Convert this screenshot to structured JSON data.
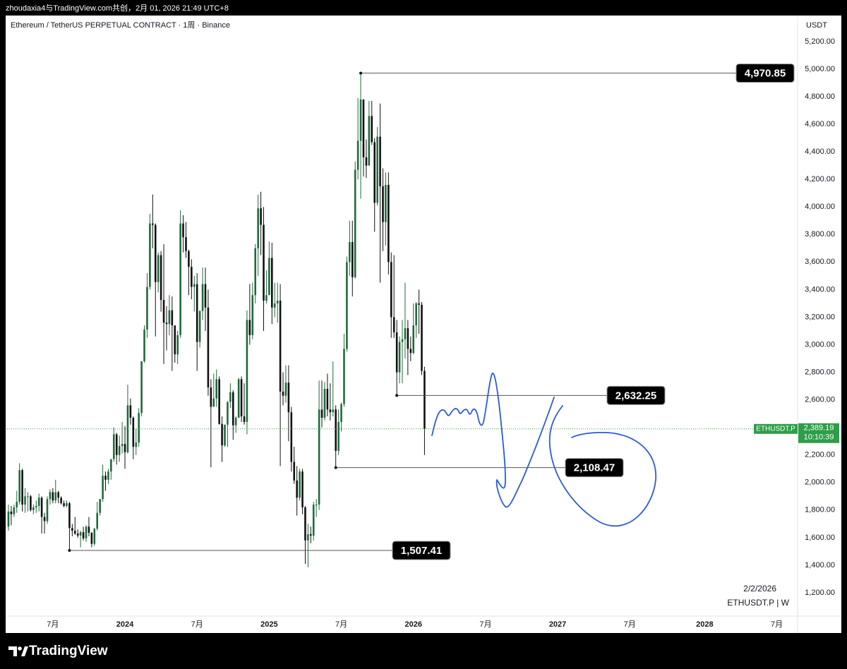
{
  "header": {
    "caption": "zhoudaxia4与TradingView.com共创，2月 01, 2026 21:49 UTC+8"
  },
  "chart_data": {
    "type": "candlestick",
    "title": "Ethereum / TetherUS PERPETUAL CONTRACT · 1周 · Binance",
    "currency": "USDT",
    "open": [
      1680,
      1790,
      1770,
      1820,
      1860,
      2090,
      1840,
      1900,
      1900,
      1800,
      1820,
      1830,
      1890,
      1750,
      1720,
      1880,
      1930,
      1870,
      1930,
      1890,
      1850,
      1830,
      1850,
      1670,
      1650,
      1630,
      1615,
      1640,
      1595,
      1680,
      1635,
      1555,
      1665,
      1780,
      1880,
      2050,
      2020,
      2080,
      2170,
      2350,
      2200,
      2265,
      2280,
      2220,
      2560,
      2470,
      2260,
      2290,
      2505,
      2880,
      3110,
      3420,
      3880,
      3870,
      3455,
      3650,
      3325,
      3160,
      3150,
      3250,
      3140,
      2930,
      3070,
      3880,
      3780,
      3680,
      3565,
      3420,
      3440,
      3020,
      3245,
      3440,
      3270,
      2690,
      2550,
      2610,
      2750,
      2425,
      2270,
      2420,
      2585,
      2655,
      2415,
      2470,
      2750,
      2480,
      2440,
      3180,
      3070,
      3360,
      3700,
      3990,
      3870,
      3320,
      3360,
      3630,
      3270,
      3300,
      3320,
      2660,
      2630,
      2725,
      2510,
      2150,
      2015,
      1890,
      2080,
      1820,
      1580,
      1625,
      1615,
      1840,
      1840,
      2530,
      2470,
      2680,
      2530,
      2510,
      2530,
      2230,
      2440,
      2570,
      2970,
      3600,
      3745,
      3490,
      4270,
      4480,
      4780,
      4360,
      4300,
      4660,
      4470,
      4030,
      4510,
      4150,
      3890,
      4160,
      3600,
      3200,
      3090,
      2800,
      3020,
      3040,
      3120,
      2970,
      2940,
      3140,
      3300,
      3290,
      2810
    ],
    "high": [
      1840,
      1830,
      1840,
      1940,
      2140,
      2100,
      1960,
      1930,
      1910,
      1840,
      1870,
      1920,
      1900,
      1780,
      1900,
      1950,
      1960,
      2020,
      1940,
      1900,
      1870,
      1870,
      1860,
      1700,
      1750,
      1660,
      1650,
      1680,
      1690,
      1750,
      1640,
      1670,
      1860,
      1880,
      2130,
      2080,
      2100,
      2170,
      2400,
      2360,
      2340,
      2440,
      2410,
      2710,
      2610,
      2480,
      2390,
      2540,
      2880,
      3140,
      3520,
      3950,
      4090,
      3880,
      3670,
      3680,
      3730,
      3280,
      3360,
      3350,
      3140,
      3100,
      3975,
      3940,
      3890,
      3690,
      3620,
      3500,
      3520,
      3250,
      3560,
      3560,
      3400,
      2750,
      2790,
      2820,
      2770,
      2480,
      2420,
      2590,
      2720,
      2670,
      2480,
      2760,
      2770,
      2720,
      3250,
      3440,
      3450,
      3730,
      4090,
      4110,
      4000,
      3540,
      3750,
      3740,
      3450,
      3450,
      3440,
      2800,
      2850,
      2850,
      2550,
      2260,
      2120,
      2100,
      2100,
      1830,
      1700,
      1680,
      1860,
      1880,
      2740,
      2740,
      2730,
      2790,
      2720,
      2880,
      2560,
      2530,
      2580,
      3080,
      3640,
      3900,
      3900,
      4330,
      4790,
      4970.85,
      4780,
      4490,
      4770,
      4770,
      4500,
      4580,
      4750,
      4280,
      4250,
      4250,
      3670,
      3650,
      3180,
      3060,
      3180,
      3450,
      3180,
      3060,
      3300,
      3310,
      3400,
      3310,
      2840
    ],
    "low": [
      1650,
      1690,
      1750,
      1780,
      1840,
      1790,
      1780,
      1790,
      1790,
      1770,
      1780,
      1790,
      1630,
      1630,
      1700,
      1840,
      1850,
      1850,
      1850,
      1840,
      1820,
      1820,
      1507.41,
      1610,
      1620,
      1600,
      1530,
      1580,
      1570,
      1610,
      1530,
      1540,
      1650,
      1760,
      1860,
      1940,
      1990,
      2020,
      2150,
      2130,
      2150,
      2210,
      2100,
      2210,
      2420,
      2170,
      2200,
      2260,
      2480,
      2870,
      3050,
      3400,
      3700,
      3060,
      3380,
      3240,
      2860,
      2960,
      3070,
      2810,
      2870,
      2860,
      3050,
      3670,
      3630,
      3360,
      3330,
      3240,
      2810,
      2980,
      3180,
      3100,
      2630,
      2110,
      2550,
      2550,
      2420,
      2150,
      2260,
      2260,
      2540,
      2310,
      2360,
      2470,
      2440,
      2420,
      2350,
      3000,
      3040,
      3300,
      3500,
      3650,
      3100,
      3300,
      3360,
      3150,
      3200,
      3160,
      2120,
      2560,
      2580,
      2300,
      2080,
      1990,
      1760,
      1870,
      1770,
      1410,
      1385,
      1560,
      1580,
      1750,
      1800,
      2400,
      2450,
      2480,
      2450,
      2480,
      2108.47,
      2200,
      2370,
      2550,
      2950,
      3500,
      3350,
      3480,
      4200,
      4060,
      4220,
      4210,
      4300,
      4450,
      3820,
      4010,
      3450,
      3680,
      3720,
      3510,
      3050,
      3050,
      2632.25,
      2720,
      2720,
      2900,
      2780,
      2880,
      2930,
      3050,
      3080,
      2780,
      2200
    ],
    "close": [
      1790,
      1770,
      1820,
      1860,
      2090,
      1840,
      1900,
      1900,
      1800,
      1820,
      1830,
      1890,
      1750,
      1720,
      1880,
      1930,
      1870,
      1930,
      1890,
      1850,
      1830,
      1850,
      1670,
      1650,
      1630,
      1615,
      1640,
      1595,
      1680,
      1635,
      1555,
      1665,
      1780,
      1880,
      2050,
      2020,
      2080,
      2170,
      2350,
      2200,
      2265,
      2280,
      2220,
      2560,
      2470,
      2260,
      2290,
      2505,
      2880,
      3110,
      3420,
      3880,
      3870,
      3455,
      3650,
      3325,
      3160,
      3150,
      3250,
      3140,
      2930,
      3070,
      3880,
      3780,
      3680,
      3565,
      3420,
      3440,
      3020,
      3245,
      3440,
      3270,
      2690,
      2550,
      2610,
      2750,
      2425,
      2270,
      2420,
      2585,
      2655,
      2415,
      2470,
      2750,
      2480,
      2440,
      3180,
      3070,
      3360,
      3700,
      3990,
      3870,
      3320,
      3360,
      3630,
      3270,
      3300,
      3320,
      2660,
      2630,
      2725,
      2510,
      2150,
      2015,
      1890,
      2080,
      1820,
      1580,
      1625,
      1615,
      1840,
      1840,
      2530,
      2470,
      2680,
      2530,
      2510,
      2530,
      2230,
      2440,
      2570,
      2970,
      3600,
      3745,
      3490,
      4270,
      4480,
      4780,
      4360,
      4300,
      4660,
      4470,
      4030,
      4510,
      4150,
      3890,
      4160,
      3600,
      3200,
      3090,
      2800,
      3020,
      3040,
      3120,
      2970,
      2940,
      3140,
      3300,
      3290,
      2810,
      2389.19
    ],
    "up_color": "#1e6b3a",
    "down_color": "#111111",
    "ylim": [
      1031,
      5389
    ],
    "yticks": [
      {
        "value": 1200,
        "label": "1,200.00"
      },
      {
        "value": 1400,
        "label": "1,400.00"
      },
      {
        "value": 1600,
        "label": "1,600.00"
      },
      {
        "value": 1800,
        "label": "1,800.00"
      },
      {
        "value": 2000,
        "label": "2,000.00"
      },
      {
        "value": 2200,
        "label": "2,200.00"
      },
      {
        "value": 2400,
        "label": "2,400.00"
      },
      {
        "value": 2600,
        "label": "2,600.00"
      },
      {
        "value": 2800,
        "label": "2,800.00"
      },
      {
        "value": 3000,
        "label": "3,000.00"
      },
      {
        "value": 3200,
        "label": "3,200.00"
      },
      {
        "value": 3400,
        "label": "3,400.00"
      },
      {
        "value": 3600,
        "label": "3,600.00"
      },
      {
        "value": 3800,
        "label": "3,800.00"
      },
      {
        "value": 4000,
        "label": "4,000.00"
      },
      {
        "value": 4200,
        "label": "4,200.00"
      },
      {
        "value": 4400,
        "label": "4,400.00"
      },
      {
        "value": 4600,
        "label": "4,600.00"
      },
      {
        "value": 4800,
        "label": "4,800.00"
      },
      {
        "value": 5000,
        "label": "5,000.00"
      },
      {
        "value": 5200,
        "label": "5,200.00"
      }
    ],
    "xlim": [
      -0.5,
      284.5
    ],
    "xticks": [
      {
        "value": 16,
        "label": "7月"
      },
      {
        "value": 42,
        "label": "2024",
        "major": true
      },
      {
        "value": 68,
        "label": "7月"
      },
      {
        "value": 94,
        "label": "2025",
        "major": true
      },
      {
        "value": 120,
        "label": "7月"
      },
      {
        "value": 146,
        "label": "2026",
        "major": true
      },
      {
        "value": 172,
        "label": "7月"
      },
      {
        "value": 198,
        "label": "2027",
        "major": true
      },
      {
        "value": 224,
        "label": "7月"
      },
      {
        "value": 251,
        "label": "2028",
        "major": true
      },
      {
        "value": 277,
        "label": "7月"
      }
    ],
    "levels": [
      {
        "value": 4970.85,
        "label": "4,970.85",
        "from": 127
      },
      {
        "value": 2632.25,
        "label": "2,632.25",
        "from": 140
      },
      {
        "value": 2108.47,
        "label": "2,108.47",
        "from": 118
      },
      {
        "value": 1507.41,
        "label": "1,507.41",
        "from": 22
      }
    ],
    "last_price": {
      "value": 2389.19,
      "label": "2,389.19",
      "symbol": "ETHUSDT.P",
      "countdown": "10:10:39",
      "color": "#2e9e48"
    },
    "date_label": "2/2/2026",
    "symbol_label": "ETHUSDT.P | W"
  },
  "footer": {
    "brand": "TradingView"
  }
}
